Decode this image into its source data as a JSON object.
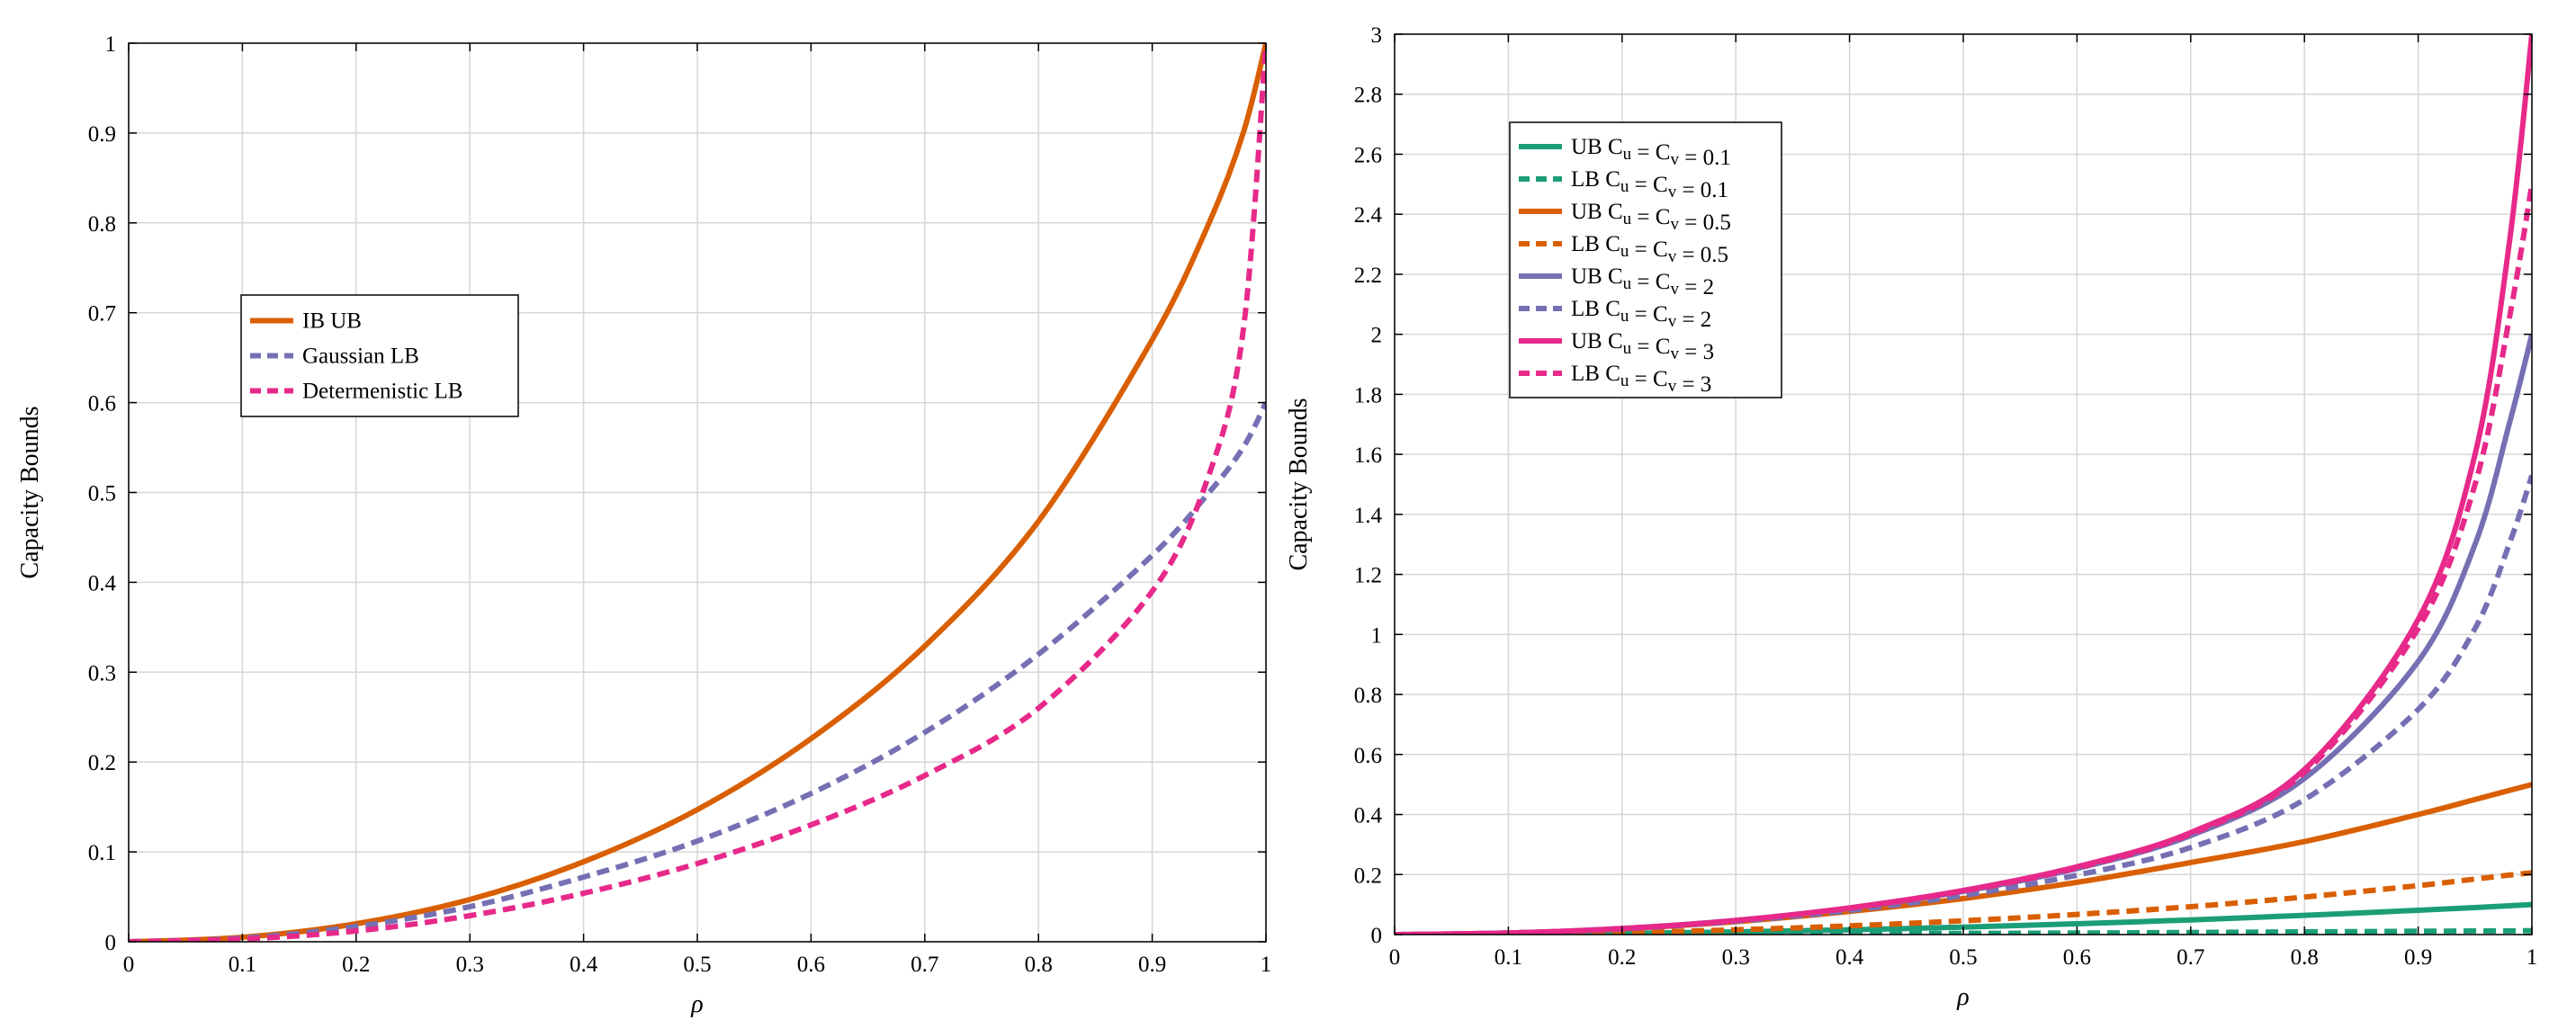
{
  "chart_data": [
    {
      "type": "line",
      "title": "",
      "xlabel": "ρ",
      "ylabel": "Capacity Bounds",
      "xlim": [
        0,
        1
      ],
      "ylim": [
        0,
        1
      ],
      "xticks": [
        "0",
        "0.1",
        "0.2",
        "0.3",
        "0.4",
        "0.5",
        "0.6",
        "0.7",
        "0.8",
        "0.9",
        "1"
      ],
      "yticks": [
        "0",
        "0.1",
        "0.2",
        "0.3",
        "0.4",
        "0.5",
        "0.6",
        "0.7",
        "0.8",
        "0.9",
        "1"
      ],
      "grid": true,
      "legend_position": "upper-left",
      "x": [
        0,
        0.1,
        0.2,
        0.3,
        0.4,
        0.5,
        0.6,
        0.7,
        0.8,
        0.9,
        0.95,
        0.98,
        1
      ],
      "series": [
        {
          "name": "IB UB",
          "color": "#d95f02",
          "style": "solid",
          "values": [
            0,
            0.005,
            0.02,
            0.047,
            0.089,
            0.147,
            0.226,
            0.329,
            0.468,
            0.67,
            0.8,
            0.9,
            1.0
          ]
        },
        {
          "name": "Gaussian LB",
          "color": "#7570b3",
          "style": "dashed",
          "values": [
            0,
            0.004,
            0.017,
            0.039,
            0.072,
            0.112,
            0.165,
            0.233,
            0.32,
            0.43,
            0.5,
            0.55,
            0.6
          ]
        },
        {
          "name": "Determenistic LB",
          "color": "#e7298a",
          "style": "dashed",
          "values": [
            0,
            0.003,
            0.012,
            0.029,
            0.054,
            0.087,
            0.13,
            0.185,
            0.26,
            0.39,
            0.52,
            0.68,
            1.0
          ]
        }
      ]
    },
    {
      "type": "line",
      "title": "",
      "xlabel": "ρ",
      "ylabel": "Capacity Bounds",
      "xlim": [
        0,
        1
      ],
      "ylim": [
        0,
        3
      ],
      "xticks": [
        "0",
        "0.1",
        "0.2",
        "0.3",
        "0.4",
        "0.5",
        "0.6",
        "0.7",
        "0.8",
        "0.9",
        "1"
      ],
      "yticks": [
        "0",
        "0.2",
        "0.4",
        "0.6",
        "0.8",
        "1",
        "1.2",
        "1.4",
        "1.6",
        "1.8",
        "2",
        "2.2",
        "2.4",
        "2.6",
        "2.8",
        "3"
      ],
      "grid": true,
      "legend_position": "upper-left",
      "x": [
        0,
        0.1,
        0.2,
        0.3,
        0.4,
        0.5,
        0.6,
        0.7,
        0.8,
        0.9,
        0.95,
        0.98,
        1
      ],
      "series": [
        {
          "name": "UB Cu = Cv = 0.1",
          "color": "#1b9e77",
          "style": "solid",
          "values": [
            0,
            0.001,
            0.004,
            0.009,
            0.016,
            0.025,
            0.036,
            0.049,
            0.064,
            0.081,
            0.09,
            0.096,
            0.1
          ]
        },
        {
          "name": "LB Cu = Cv = 0.1",
          "color": "#1b9e77",
          "style": "dashed",
          "values": [
            0,
            0,
            0.001,
            0.002,
            0.003,
            0.004,
            0.005,
            0.007,
            0.009,
            0.011,
            0.012,
            0.012,
            0.013
          ]
        },
        {
          "name": "UB Cu = Cv = 0.5",
          "color": "#d95f02",
          "style": "solid",
          "values": [
            0,
            0.005,
            0.019,
            0.043,
            0.077,
            0.12,
            0.174,
            0.24,
            0.31,
            0.4,
            0.45,
            0.48,
            0.5
          ]
        },
        {
          "name": "LB Cu = Cv = 0.5",
          "color": "#d95f02",
          "style": "dashed",
          "values": [
            0,
            0.002,
            0.007,
            0.016,
            0.029,
            0.046,
            0.067,
            0.093,
            0.125,
            0.163,
            0.185,
            0.198,
            0.206
          ]
        },
        {
          "name": "UB Cu = Cv = 2",
          "color": "#7570b3",
          "style": "solid",
          "values": [
            0,
            0.005,
            0.02,
            0.047,
            0.088,
            0.144,
            0.22,
            0.33,
            0.52,
            0.91,
            1.3,
            1.7,
            2.0
          ]
        },
        {
          "name": "LB Cu = Cv = 2",
          "color": "#7570b3",
          "style": "dashed",
          "values": [
            0,
            0.005,
            0.019,
            0.044,
            0.08,
            0.13,
            0.198,
            0.29,
            0.45,
            0.75,
            1.02,
            1.3,
            1.53
          ]
        },
        {
          "name": "UB Cu = Cv = 3",
          "color": "#e7298a",
          "style": "solid",
          "values": [
            0,
            0.005,
            0.02,
            0.047,
            0.089,
            0.147,
            0.226,
            0.34,
            0.55,
            1.05,
            1.6,
            2.3,
            3.0
          ]
        },
        {
          "name": "LB Cu = Cv = 3",
          "color": "#e7298a",
          "style": "dashed",
          "values": [
            0,
            0.005,
            0.02,
            0.047,
            0.088,
            0.145,
            0.222,
            0.335,
            0.54,
            1.02,
            1.5,
            2.05,
            2.5
          ]
        }
      ]
    }
  ]
}
